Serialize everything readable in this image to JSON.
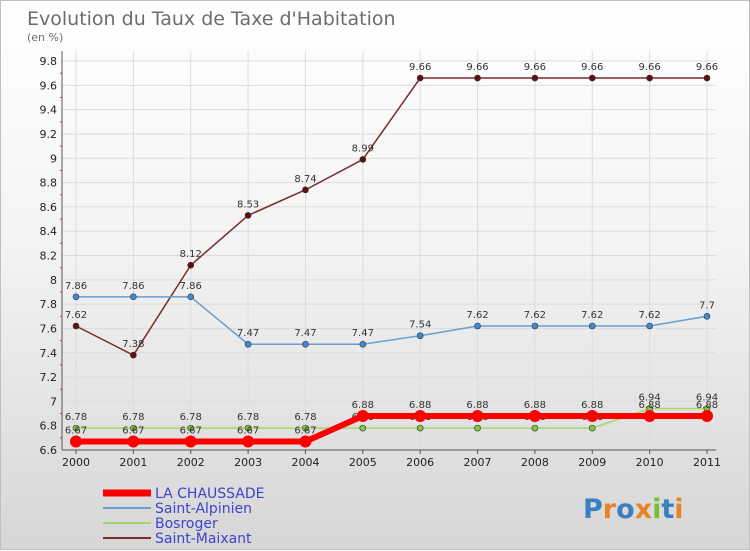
{
  "chart_data": {
    "type": "line",
    "title": "Evolution du Taux de Taxe d'Habitation",
    "subtitle": "(en %)",
    "xlabel": "",
    "ylabel": "",
    "categories": [
      "2000",
      "2001",
      "2002",
      "2003",
      "2004",
      "2005",
      "2006",
      "2007",
      "2008",
      "2009",
      "2010",
      "2011"
    ],
    "ylim": [
      6.6,
      9.8
    ],
    "yticks": [
      6.6,
      6.8,
      7,
      7.2,
      7.4,
      7.6,
      7.8,
      8,
      8.2,
      8.4,
      8.6,
      8.8,
      9,
      9.2,
      9.4,
      9.6,
      9.8
    ],
    "ytick_labels": [
      "6.6",
      "6.8",
      "7",
      "7.2",
      "7.4",
      "7.6",
      "7.8",
      "8",
      "8.2",
      "8.4",
      "8.6",
      "8.8",
      "9",
      "9.2",
      "9.4",
      "9.6",
      "9.8"
    ],
    "grid": true,
    "legend_position": "bottom-left",
    "series": [
      {
        "name": "LA CHAUSSADE",
        "color": "#ff0000",
        "width": 6,
        "marker_fill": "#ff0000",
        "values": [
          6.67,
          6.67,
          6.67,
          6.67,
          6.67,
          6.88,
          6.88,
          6.88,
          6.88,
          6.88,
          6.88,
          6.88
        ],
        "labels": [
          "6.67",
          "6.67",
          "6.67",
          "6.67",
          "6.67",
          "6.88",
          "6.88",
          "6.88",
          "6.88",
          "6.88",
          "6.88",
          "6.88"
        ]
      },
      {
        "name": "Saint-Alpinien",
        "color": "#6a9fd0",
        "width": 1.5,
        "marker_fill": "#3f8ad6",
        "values": [
          7.86,
          7.86,
          7.86,
          7.47,
          7.47,
          7.47,
          7.54,
          7.62,
          7.62,
          7.62,
          7.62,
          7.7
        ],
        "labels": [
          "7.86",
          "7.86",
          "7.86",
          "7.47",
          "7.47",
          "7.47",
          "7.54",
          "7.62",
          "7.62",
          "7.62",
          "7.62",
          "7.7"
        ]
      },
      {
        "name": "Bosroger",
        "color": "#a4d66a",
        "width": 1.5,
        "marker_fill": "#7fcb3c",
        "values": [
          6.78,
          6.78,
          6.78,
          6.78,
          6.78,
          6.78,
          6.78,
          6.78,
          6.78,
          6.78,
          6.94,
          6.94
        ],
        "labels": [
          "6.78",
          "6.78",
          "6.78",
          "6.78",
          "6.78",
          "6.78",
          "6.78",
          "6.78",
          "6.78",
          "6.78",
          "6.94",
          "6.94"
        ]
      },
      {
        "name": "Saint-Maixant",
        "color": "#7a2b2b",
        "width": 1.5,
        "marker_fill": "#5c1010",
        "values": [
          7.62,
          7.38,
          8.12,
          8.53,
          8.74,
          8.99,
          9.66,
          9.66,
          9.66,
          9.66,
          9.66,
          9.66
        ],
        "labels": [
          "7.62",
          "7.38",
          "8.12",
          "8.53",
          "8.74",
          "8.99",
          "9.66",
          "9.66",
          "9.66",
          "9.66",
          "9.66",
          "9.66"
        ]
      }
    ]
  },
  "logo": {
    "text": "Proxiti",
    "colors": [
      "#3a7fc1",
      "#e8832a",
      "#3a7fc1",
      "#e8832a",
      "#7dbb3c",
      "#3a7fc1",
      "#e8832a"
    ]
  }
}
